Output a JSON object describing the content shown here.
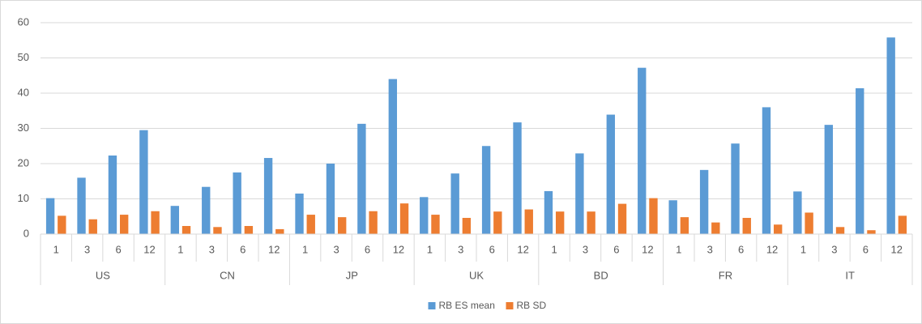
{
  "chart_data": {
    "type": "bar",
    "groups": [
      {
        "name": "US",
        "categories": [
          "1",
          "3",
          "6",
          "12"
        ]
      },
      {
        "name": "CN",
        "categories": [
          "1",
          "3",
          "6",
          "12"
        ]
      },
      {
        "name": "JP",
        "categories": [
          "1",
          "3",
          "6",
          "12"
        ]
      },
      {
        "name": "UK",
        "categories": [
          "1",
          "3",
          "6",
          "12"
        ]
      },
      {
        "name": "BD",
        "categories": [
          "1",
          "3",
          "6",
          "12"
        ]
      },
      {
        "name": "FR",
        "categories": [
          "1",
          "3",
          "6",
          "12"
        ]
      },
      {
        "name": "IT",
        "categories": [
          "1",
          "3",
          "6",
          "12"
        ]
      }
    ],
    "series": [
      {
        "name": "RB ES mean",
        "color": "#5b9bd5",
        "values": [
          10.2,
          16,
          22.3,
          29.5,
          8,
          13.4,
          17.5,
          21.6,
          11.5,
          20,
          31.3,
          44,
          10.5,
          17.2,
          25,
          31.7,
          12.2,
          22.9,
          33.9,
          47.2,
          9.6,
          18.2,
          25.7,
          36,
          12.1,
          31,
          41.4,
          55.8
        ]
      },
      {
        "name": "RB SD",
        "color": "#ed7d31",
        "values": [
          5.2,
          4.2,
          5.5,
          6.5,
          2.3,
          2.0,
          2.3,
          1.4,
          5.5,
          4.8,
          6.5,
          8.7,
          5.5,
          4.6,
          6.4,
          7.0,
          6.4,
          6.4,
          8.6,
          10.2,
          4.8,
          3.3,
          4.6,
          2.7,
          6.1,
          2.0,
          1.1,
          5.2
        ]
      }
    ],
    "ylim": [
      0,
      60
    ],
    "yticks": [
      0,
      10,
      20,
      30,
      40,
      50,
      60
    ],
    "grid": true,
    "legend": "bottom"
  }
}
